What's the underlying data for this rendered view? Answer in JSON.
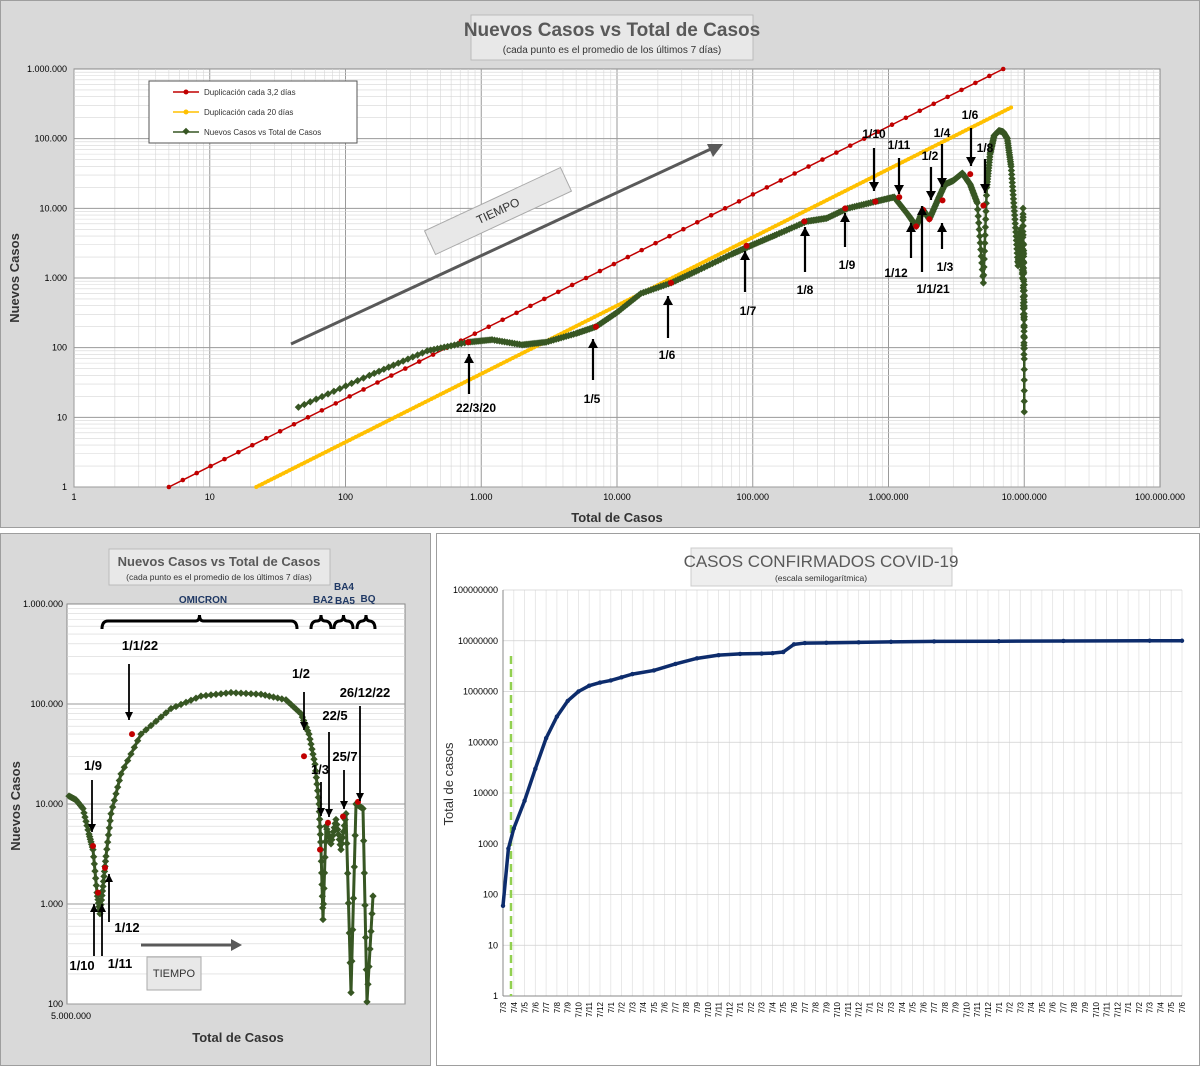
{
  "chart_data": [
    {
      "type": "line",
      "title": "Nuevos Casos vs Total de Casos",
      "subtitle": "(cada punto  es el promedio  de los últimos  7 días)",
      "xlabel": "Total de Casos",
      "ylabel": "Nuevos Casos",
      "x_scale": "log",
      "y_scale": "log",
      "xlim": [
        1,
        100000000
      ],
      "ylim": [
        1,
        1000000
      ],
      "x_ticks": [
        "1",
        "10",
        "100",
        "1.000",
        "10.000",
        "100.000",
        "1.000.000",
        "10.000.000",
        "100.000.000"
      ],
      "y_ticks": [
        "1",
        "10",
        "100",
        "1.000",
        "10.000",
        "100.000",
        "1.000.000"
      ],
      "grid": true,
      "legend_position": "top-left",
      "series": [
        {
          "name": "Duplicación cada 3,2 días",
          "color": "#c00000",
          "x": [
            5,
            7000000
          ],
          "y": [
            1,
            1000000
          ]
        },
        {
          "name": "Duplicación cada 20 días",
          "color": "#ffc000",
          "x": [
            22,
            8000000
          ],
          "y": [
            1,
            280000
          ]
        },
        {
          "name": "Nuevos Casos vs Total de Casos",
          "color": "#375623",
          "x": [
            45,
            150,
            400,
            800,
            1200,
            2000,
            3000,
            5000,
            7000,
            10000,
            15000,
            25000,
            40000,
            70000,
            100000,
            150000,
            250000,
            350000,
            500000,
            800000,
            1100000,
            1400000,
            1600000,
            1800000,
            2000000,
            2300000,
            2600000,
            3000000,
            3500000,
            4000000,
            4500000,
            5000000,
            5300000,
            5600000,
            6000000,
            6500000,
            7000000,
            7500000,
            8000000,
            8500000,
            9000000,
            9400000,
            9700000,
            9800000,
            9850000,
            9900000,
            9950000,
            10000000,
            10000000
          ],
          "y": [
            14,
            40,
            90,
            120,
            130,
            110,
            120,
            160,
            200,
            320,
            600,
            850,
            1300,
            2200,
            3000,
            4200,
            6500,
            7200,
            10000,
            12500,
            14500,
            8000,
            5500,
            9500,
            7000,
            13000,
            22000,
            25000,
            32000,
            22000,
            12000,
            850,
            20000,
            60000,
            110000,
            130000,
            125000,
            100000,
            40000,
            8000,
            1500,
            5000,
            1000,
            10000,
            300,
            3000,
            80,
            800,
            12
          ]
        }
      ],
      "annotations": [
        "22/3/20",
        "1/5",
        "1/6",
        "1/7",
        "1/8",
        "1/9",
        "1/10",
        "1/11",
        "1/12",
        "1/1/21",
        "1/2",
        "1/3",
        "1/4",
        "1/6",
        "1/8"
      ],
      "arrow_label": "TIEMPO"
    },
    {
      "type": "line",
      "title": "Nuevos Casos vs Total de Casos",
      "subtitle": "(cada punto es el promedio de los últimos 7 días)",
      "xlabel": "Total de Casos",
      "ylabel": "Nuevos Casos",
      "y_scale": "log",
      "ylim": [
        100,
        1000000
      ],
      "x_ticks": [
        "5.000.000"
      ],
      "y_ticks": [
        "100",
        "1.000",
        "10.000",
        "100.000",
        "1.000.000"
      ],
      "series": [
        {
          "name": "Nuevos Casos vs Total de Casos",
          "color": "#375623",
          "y": [
            12000,
            11000,
            9000,
            5000,
            3500,
            1300,
            800,
            1500,
            3000,
            8000,
            20000,
            50000,
            90000,
            120000,
            130000,
            125000,
            110000,
            80000,
            50000,
            25000,
            10000,
            3500,
            700,
            6000,
            4000,
            7000,
            3500,
            8000,
            130,
            10000,
            9000,
            105,
            1200
          ]
        }
      ],
      "variant_labels": [
        "OMICRON",
        "BA2",
        "BA4",
        "BA5",
        "BQ"
      ],
      "annotations": [
        "1/1/22",
        "1/2",
        "22/5",
        "26/12/22",
        "1/3",
        "25/7",
        "1/9",
        "1/12",
        "1/10",
        "1/11"
      ],
      "arrow_label": "TIEMPO"
    },
    {
      "type": "line",
      "title": "CASOS CONFIRMADOS COVID-19",
      "subtitle": "(escala semilogarítmica)",
      "ylabel": "Total de casos",
      "y_scale": "log",
      "ylim": [
        1,
        100000000
      ],
      "y_ticks": [
        "100000000",
        "10000000",
        "1000000",
        "100000",
        "10000",
        "1000",
        "100",
        "10",
        "1"
      ],
      "x_ticks": [
        "7/3",
        "7/4",
        "7/5",
        "7/6",
        "7/7",
        "7/8",
        "7/9",
        "7/10",
        "7/11",
        "7/12",
        "7/1",
        "7/2",
        "7/3",
        "7/4",
        "7/5",
        "7/6",
        "7/7",
        "7/8",
        "7/9",
        "7/10",
        "7/11",
        "7/12",
        "7/1",
        "7/2",
        "7/3",
        "7/4",
        "7/5",
        "7/6",
        "7/7",
        "7/8",
        "7/9",
        "7/10",
        "7/11",
        "7/12",
        "7/1",
        "7/2",
        "7/3",
        "7/4",
        "7/5",
        "7/6",
        "7/7",
        "7/8",
        "7/9",
        "7/10",
        "7/11",
        "7/12",
        "7/1",
        "7/2",
        "7/3",
        "7/4",
        "7/5",
        "7/6",
        "7/7",
        "7/8",
        "7/9",
        "7/10",
        "7/11",
        "7/12",
        "7/1",
        "7/2",
        "7/3",
        "7/4",
        "7/5",
        "7/6"
      ],
      "series": [
        {
          "name": "Total de casos",
          "color": "#0d2c6c",
          "x": [
            0,
            0.5,
            1,
            2,
            3,
            4,
            5,
            6,
            7,
            8,
            9,
            10,
            11,
            12,
            14,
            16,
            18,
            20,
            22,
            24,
            25,
            26,
            27,
            28,
            30,
            33,
            36,
            40,
            46,
            52,
            60,
            63
          ],
          "y": [
            60,
            800,
            2000,
            7000,
            30000,
            120000,
            320000,
            650000,
            1000000,
            1300000,
            1500000,
            1650000,
            1900000,
            2200000,
            2600000,
            3500000,
            4500000,
            5200000,
            5500000,
            5600000,
            5700000,
            6000000,
            8500000,
            9000000,
            9100000,
            9300000,
            9500000,
            9700000,
            9800000,
            9900000,
            10000000,
            10000000
          ]
        }
      ]
    }
  ]
}
